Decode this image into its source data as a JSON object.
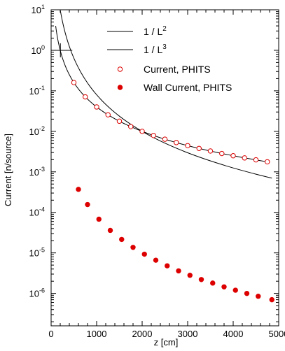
{
  "chart_data": {
    "type": "line",
    "xlabel": "z [cm]",
    "ylabel": "Current [n/source]",
    "xlim": [
      0,
      5000
    ],
    "ylim_log10": [
      -6.8,
      1.0
    ],
    "y_scale": "log",
    "grid": false,
    "legend_position": "top-right",
    "x_ticks": [
      0,
      1000,
      2000,
      3000,
      4000,
      5000
    ],
    "x_tick_labels": [
      "0",
      "1000",
      "2000",
      "3000",
      "4000",
      "5000"
    ],
    "y_tick_exponents": [
      1,
      0,
      -1,
      -2,
      -3,
      -4,
      -5,
      -6
    ],
    "y_tick_labels": [
      {
        "base": "10",
        "exp": "1"
      },
      {
        "base": "10",
        "exp": "0"
      },
      {
        "base": "10",
        "exp": "-1"
      },
      {
        "base": "10",
        "exp": "-2"
      },
      {
        "base": "10",
        "exp": "-3"
      },
      {
        "base": "10",
        "exp": "-4"
      },
      {
        "base": "10",
        "exp": "-5"
      },
      {
        "base": "10",
        "exp": "-6"
      }
    ],
    "legend": [
      {
        "label": "1 / L",
        "sup": "2",
        "style": "line"
      },
      {
        "label": "1 / L",
        "sup": "3",
        "style": "line"
      },
      {
        "label": "Current, PHITS",
        "style": "open-circle"
      },
      {
        "label": "Wall Current, PHITS",
        "style": "filled-circle"
      }
    ],
    "series": [
      {
        "name": "Current, PHITS",
        "marker": "open-circle",
        "color": "#dd0000",
        "x": [
          500,
          750,
          1000,
          1250,
          1500,
          1750,
          2000,
          2250,
          2500,
          2750,
          3000,
          3250,
          3500,
          3750,
          4000,
          4250,
          4500,
          4750
        ],
        "y": [
          0.16,
          0.071,
          0.04,
          0.0256,
          0.0178,
          0.0131,
          0.01,
          0.0079,
          0.0064,
          0.00529,
          0.00444,
          0.00379,
          0.00327,
          0.00284,
          0.0025,
          0.00221,
          0.00198,
          0.00177
        ]
      },
      {
        "name": "Wall Current, PHITS",
        "marker": "filled-circle",
        "color": "#dd0000",
        "x": [
          600,
          800,
          1050,
          1300,
          1550,
          1800,
          2050,
          2300,
          2550,
          2800,
          3050,
          3300,
          3550,
          3800,
          4050,
          4300,
          4550,
          4850
        ],
        "y": [
          0.00037,
          0.000156,
          6.8e-05,
          3.6e-05,
          2.15e-05,
          1.37e-05,
          9.3e-06,
          6.6e-06,
          4.8e-06,
          3.6e-06,
          2.8e-06,
          2.2e-06,
          1.8e-06,
          1.45e-06,
          1.2e-06,
          1e-06,
          8.5e-07,
          7e-07
        ]
      }
    ],
    "curves": [
      {
        "name": "1 / L2",
        "form": "a / z^2",
        "a": 40000,
        "x_range": [
          100,
          4800
        ],
        "color": "#000000"
      },
      {
        "name": "1 / L3",
        "form": "a / z^3",
        "a": 80000000,
        "x_range": [
          90,
          4850
        ],
        "color": "#000000"
      }
    ]
  }
}
